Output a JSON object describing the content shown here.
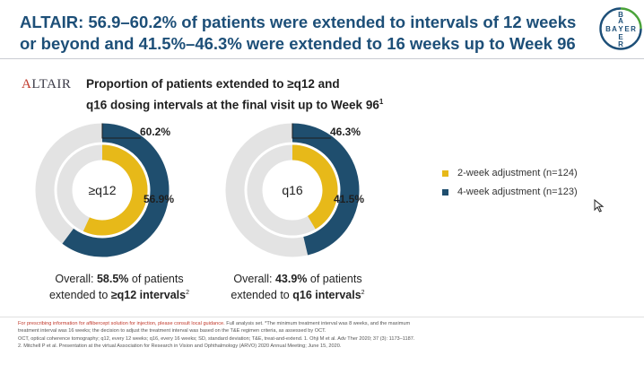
{
  "headline": {
    "line1": "ALTAIR: 56.9–60.2% of patients were extended to intervals of 12 weeks",
    "line2": "or beyond and 41.5%–46.3% were extended to 16 weeks up to Week 96"
  },
  "brand": {
    "logo_text_row": "BAYER",
    "color": "#1d4f78",
    "accent": "#4aa33a"
  },
  "study_logo": "ALTAIR",
  "chart_subtitle": {
    "line1": "Proportion of patients extended to ≥q12 and",
    "line2": "q16 dosing intervals at the final visit up to Week 96",
    "footnote_mark": "1"
  },
  "colors": {
    "two_week": "#e7b919",
    "four_week": "#1f4e6e",
    "track": "#e3e3e3"
  },
  "chart_data": [
    {
      "type": "donut",
      "center_label": "≥q12",
      "series": [
        {
          "name": "4-week adjustment (n=123)",
          "value": 60.2,
          "label": "60.2%"
        },
        {
          "name": "2-week adjustment (n=124)",
          "value": 56.9,
          "label": "56.9%"
        }
      ],
      "overall": {
        "prefix": "Overall:",
        "value": "58.5%",
        "suffix": "of patients",
        "line2_prefix": "extended to",
        "line2_bold": "≥q12 intervals",
        "footnote_mark": "2"
      }
    },
    {
      "type": "donut",
      "center_label": "q16",
      "series": [
        {
          "name": "4-week adjustment (n=123)",
          "value": 46.3,
          "label": "46.3%"
        },
        {
          "name": "2-week adjustment (n=124)",
          "value": 41.5,
          "label": "41.5%"
        }
      ],
      "overall": {
        "prefix": "Overall:",
        "value": "43.9%",
        "suffix": "of patients",
        "line2_prefix": "extended to",
        "line2_bold": "q16 intervals",
        "footnote_mark": "2"
      }
    }
  ],
  "legend": [
    {
      "label": "2-week adjustment (n=124)",
      "color": "#e7b919"
    },
    {
      "label": "4-week adjustment (n=123)",
      "color": "#1f4e6e"
    }
  ],
  "footnotes": {
    "prescribing": "For prescribing information for aflibercept solution for injection, please consult local guidance.",
    "line1_rest": "Full analysis set. *The minimum treatment interval was 8 weeks, and the maximum",
    "line2": "treatment interval was 16 weeks; the decision to adjust the treatment interval was based on the T&E regimen criteria, as assessed by OCT.",
    "line3": "OCT, optical coherence tomography; q12, every 12 weeks; q16, every 16 weeks; SD, standard deviation; T&E, treat-and-extend. 1. Ohji M et al. Adv Ther 2020; 37 (3): 1173–1187.",
    "line4": "2. Mitchell P et al. Presentation at the virtual Association for Research in Vision and Ophthalmology (ARVO) 2020 Annual Meeting; June 15, 2020."
  }
}
